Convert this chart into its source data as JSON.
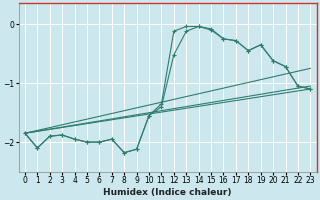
{
  "title": "",
  "xlabel": "Humidex (Indice chaleur)",
  "ylabel": "",
  "bg_color": "#cce8ee",
  "grid_color": "#ffffff",
  "line_color": "#2e7d6e",
  "border_color_tb": "#cc3333",
  "border_color_lr": "#2e7d6e",
  "xlim": [
    -0.5,
    23.5
  ],
  "ylim": [
    -2.5,
    0.35
  ],
  "yticks": [
    0,
    -1,
    -2
  ],
  "xticks": [
    0,
    1,
    2,
    3,
    4,
    5,
    6,
    7,
    8,
    9,
    10,
    11,
    12,
    13,
    14,
    15,
    16,
    17,
    18,
    19,
    20,
    21,
    22,
    23
  ],
  "series1_x": [
    0,
    1,
    2,
    3,
    4,
    5,
    6,
    7,
    8,
    9,
    10,
    11,
    12,
    13,
    14,
    15,
    16,
    17,
    18,
    19,
    20,
    21,
    22,
    23
  ],
  "series1_y": [
    -1.85,
    -2.1,
    -1.9,
    -1.88,
    -1.95,
    -2.0,
    -2.0,
    -1.95,
    -2.18,
    -2.12,
    -1.55,
    -1.35,
    -0.12,
    -0.04,
    -0.04,
    -0.08,
    -0.25,
    -0.28,
    -0.45,
    -0.35,
    -0.62,
    -0.72,
    -1.05,
    -1.1
  ],
  "series2_x": [
    0,
    1,
    2,
    3,
    4,
    5,
    6,
    7,
    8,
    9,
    10,
    11,
    12,
    13,
    14,
    15,
    16,
    17,
    18,
    19,
    20,
    21,
    22,
    23
  ],
  "series2_y": [
    -1.85,
    -2.1,
    -1.9,
    -1.88,
    -1.95,
    -2.0,
    -2.0,
    -1.95,
    -2.18,
    -2.12,
    -1.55,
    -1.4,
    -0.52,
    -0.12,
    -0.04,
    -0.1,
    -0.25,
    -0.28,
    -0.45,
    -0.35,
    -0.62,
    -0.72,
    -1.05,
    -1.1
  ],
  "line1_x": [
    0,
    23
  ],
  "line1_y": [
    -1.85,
    -1.05
  ],
  "line2_x": [
    0,
    23
  ],
  "line2_y": [
    -1.85,
    -1.1
  ],
  "line3_x": [
    0,
    23
  ],
  "line3_y": [
    -1.85,
    -0.75
  ]
}
